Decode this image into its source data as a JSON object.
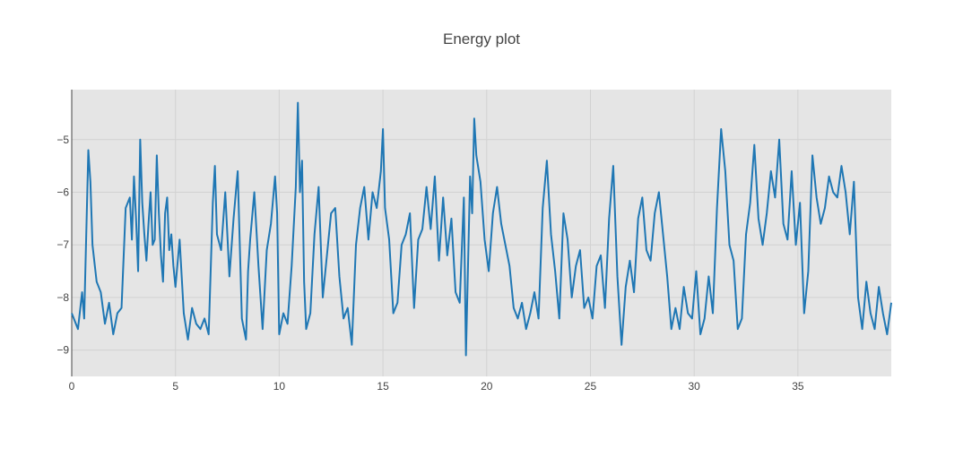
{
  "chart_data": {
    "type": "line",
    "title": "Energy plot",
    "xlabel": "",
    "ylabel": "",
    "xlim": [
      0,
      39.5
    ],
    "ylim": [
      -9.5,
      -4.05
    ],
    "x_ticks": [
      0,
      5,
      10,
      15,
      20,
      25,
      30,
      35
    ],
    "y_ticks": [
      -9,
      -8,
      -7,
      -6,
      -5
    ],
    "x_tick_labels": [
      "0",
      "5",
      "10",
      "15",
      "20",
      "25",
      "30",
      "35"
    ],
    "y_tick_labels": [
      "−9",
      "−8",
      "−7",
      "−6",
      "−5"
    ],
    "grid": true,
    "legend": "none",
    "colors": {
      "line": "#1f77b4",
      "plot_bg": "#e5e5e5",
      "grid": "#d2d2d2",
      "axis": "#444444"
    },
    "series": [
      {
        "x": [
          0,
          0.3,
          0.5,
          0.6,
          0.7,
          0.8,
          0.9,
          1.0,
          1.2,
          1.4,
          1.6,
          1.8,
          2.0,
          2.2,
          2.4,
          2.6,
          2.8,
          2.9,
          3.0,
          3.1,
          3.2,
          3.3,
          3.4,
          3.5,
          3.6,
          3.7,
          3.8,
          3.9,
          4.0,
          4.1,
          4.2,
          4.3,
          4.4,
          4.5,
          4.6,
          4.7,
          4.8,
          4.9,
          5.0,
          5.2,
          5.4,
          5.6,
          5.8,
          6.0,
          6.2,
          6.4,
          6.6,
          6.8,
          6.9,
          7.0,
          7.2,
          7.4,
          7.6,
          7.8,
          8.0,
          8.2,
          8.4,
          8.5,
          8.6,
          8.8,
          9.0,
          9.2,
          9.4,
          9.6,
          9.8,
          9.9,
          10.0,
          10.2,
          10.4,
          10.6,
          10.8,
          10.9,
          11.0,
          11.1,
          11.2,
          11.3,
          11.5,
          11.7,
          11.9,
          12.1,
          12.3,
          12.5,
          12.7,
          12.9,
          13.1,
          13.3,
          13.5,
          13.7,
          13.9,
          14.1,
          14.3,
          14.5,
          14.7,
          14.9,
          15.0,
          15.1,
          15.3,
          15.5,
          15.7,
          15.9,
          16.1,
          16.3,
          16.5,
          16.7,
          16.9,
          17.1,
          17.3,
          17.5,
          17.7,
          17.9,
          18.1,
          18.3,
          18.5,
          18.7,
          18.9,
          19.0,
          19.2,
          19.3,
          19.4,
          19.5,
          19.7,
          19.9,
          20.1,
          20.3,
          20.5,
          20.7,
          20.9,
          21.1,
          21.3,
          21.5,
          21.7,
          21.9,
          22.1,
          22.3,
          22.5,
          22.7,
          22.9,
          23.1,
          23.3,
          23.5,
          23.7,
          23.9,
          24.1,
          24.3,
          24.5,
          24.7,
          24.9,
          25.1,
          25.3,
          25.5,
          25.7,
          25.9,
          26.1,
          26.3,
          26.5,
          26.7,
          26.9,
          27.1,
          27.3,
          27.5,
          27.7,
          27.9,
          28.1,
          28.3,
          28.5,
          28.7,
          28.9,
          29.1,
          29.3,
          29.5,
          29.7,
          29.9,
          30.1,
          30.3,
          30.5,
          30.7,
          30.9,
          31.1,
          31.3,
          31.5,
          31.7,
          31.9,
          32.1,
          32.3,
          32.5,
          32.7,
          32.9,
          33.1,
          33.3,
          33.5,
          33.7,
          33.9,
          34.1,
          34.3,
          34.5,
          34.7,
          34.9,
          35.1,
          35.3,
          35.5,
          35.7,
          35.9,
          36.1,
          36.3,
          36.5,
          36.7,
          36.9,
          37.1,
          37.3,
          37.5,
          37.7,
          37.9,
          38.1,
          38.3,
          38.5,
          38.7,
          38.9,
          39.1,
          39.3,
          39.5
        ],
        "values": [
          -8.3,
          -8.6,
          -7.9,
          -8.4,
          -6.8,
          -5.2,
          -5.8,
          -7.0,
          -7.7,
          -7.9,
          -8.5,
          -8.1,
          -8.7,
          -8.3,
          -8.2,
          -6.3,
          -6.1,
          -6.9,
          -5.7,
          -6.5,
          -7.5,
          -5.0,
          -6.2,
          -6.8,
          -7.3,
          -6.6,
          -6.0,
          -7.0,
          -6.9,
          -5.3,
          -6.4,
          -7.2,
          -7.7,
          -6.4,
          -6.1,
          -7.1,
          -6.8,
          -7.4,
          -7.8,
          -6.9,
          -8.3,
          -8.8,
          -8.2,
          -8.5,
          -8.6,
          -8.4,
          -8.7,
          -6.2,
          -5.5,
          -6.8,
          -7.1,
          -6.0,
          -7.6,
          -6.5,
          -5.6,
          -8.4,
          -8.8,
          -7.5,
          -6.9,
          -6.0,
          -7.4,
          -8.6,
          -7.1,
          -6.6,
          -5.7,
          -6.4,
          -8.7,
          -8.3,
          -8.5,
          -7.4,
          -5.9,
          -4.3,
          -6.0,
          -5.4,
          -7.7,
          -8.6,
          -8.3,
          -6.8,
          -5.9,
          -8.0,
          -7.2,
          -6.4,
          -6.3,
          -7.6,
          -8.4,
          -8.2,
          -8.9,
          -7.0,
          -6.3,
          -5.9,
          -6.9,
          -6.0,
          -6.3,
          -5.6,
          -4.8,
          -6.3,
          -6.9,
          -8.3,
          -8.1,
          -7.0,
          -6.8,
          -6.4,
          -8.2,
          -6.9,
          -6.7,
          -5.9,
          -6.7,
          -5.7,
          -7.3,
          -6.1,
          -7.2,
          -6.5,
          -7.9,
          -8.1,
          -6.1,
          -9.1,
          -5.7,
          -6.4,
          -4.6,
          -5.3,
          -5.8,
          -6.9,
          -7.5,
          -6.4,
          -5.9,
          -6.6,
          -7.0,
          -7.4,
          -8.2,
          -8.4,
          -8.1,
          -8.6,
          -8.3,
          -7.9,
          -8.4,
          -6.3,
          -5.4,
          -6.8,
          -7.5,
          -8.4,
          -6.4,
          -6.9,
          -8.0,
          -7.4,
          -7.1,
          -8.2,
          -8.0,
          -8.4,
          -7.4,
          -7.2,
          -8.2,
          -6.5,
          -5.5,
          -7.6,
          -8.9,
          -7.8,
          -7.3,
          -7.9,
          -6.5,
          -6.1,
          -7.1,
          -7.3,
          -6.4,
          -6.0,
          -6.8,
          -7.6,
          -8.6,
          -8.2,
          -8.6,
          -7.8,
          -8.3,
          -8.4,
          -7.5,
          -8.7,
          -8.4,
          -7.6,
          -8.3,
          -6.3,
          -4.8,
          -5.6,
          -7.0,
          -7.3,
          -8.6,
          -8.4,
          -6.8,
          -6.2,
          -5.1,
          -6.5,
          -7.0,
          -6.4,
          -5.6,
          -6.1,
          -5.0,
          -6.6,
          -6.9,
          -5.6,
          -7.0,
          -6.2,
          -8.3,
          -7.5,
          -5.3,
          -6.1,
          -6.6,
          -6.3,
          -5.7,
          -6.0,
          -6.1,
          -5.5,
          -6.0,
          -6.8,
          -5.8,
          -8.0,
          -8.6,
          -7.7,
          -8.3,
          -8.6,
          -7.8,
          -8.3,
          -8.7,
          -8.1
        ]
      }
    ]
  }
}
